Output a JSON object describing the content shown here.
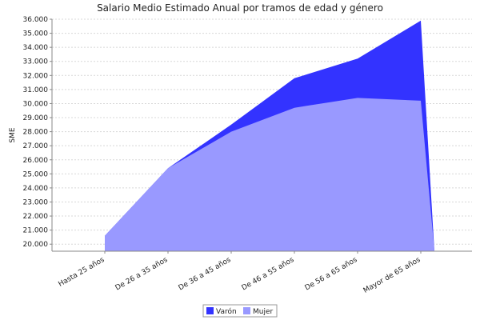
{
  "chart_data": {
    "type": "area",
    "title": "Salario Medio Estimado Anual por tramos de edad y género",
    "xlabel": "",
    "ylabel": "SME",
    "categories": [
      "Hasta 25  años",
      "De 26  a 35  años",
      "De 36  a 45  años",
      "De 46 a 55  años",
      "De 56  a 65  años",
      "Mayor de 65  años"
    ],
    "ylim": [
      19500,
      36000
    ],
    "yticks": [
      "20.000",
      "21.000",
      "22.000",
      "23.000",
      "24.000",
      "25.000",
      "26.000",
      "27.000",
      "28.000",
      "29.000",
      "30.000",
      "31.000",
      "32.000",
      "33.000",
      "34.000",
      "35.000",
      "36.000"
    ],
    "grid": true,
    "legend_position": "bottom",
    "series": [
      {
        "name": "Varón",
        "color": "#3333ff",
        "values": [
          20600,
          25400,
          28500,
          31800,
          33200,
          35900
        ]
      },
      {
        "name": "Mujer",
        "color": "#9999ff",
        "values": [
          20600,
          25400,
          28000,
          29700,
          30400,
          30200
        ]
      }
    ]
  }
}
